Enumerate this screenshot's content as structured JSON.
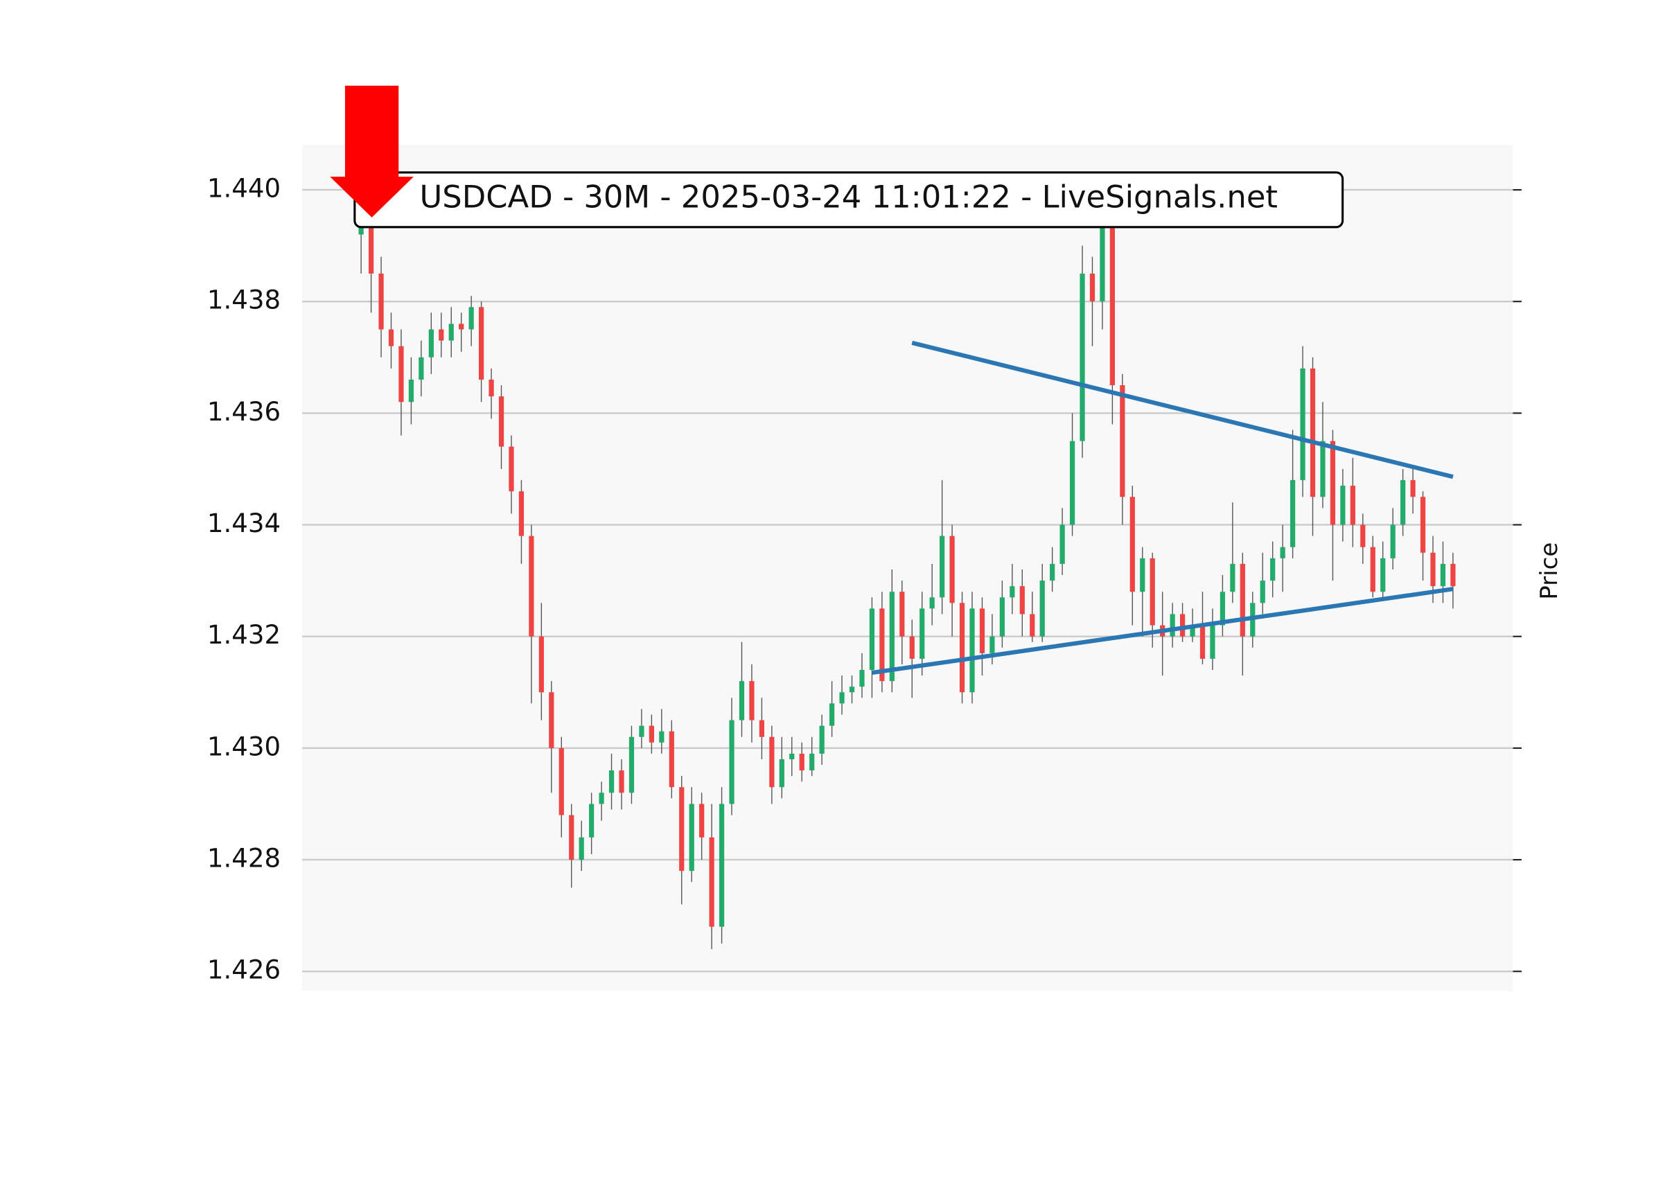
{
  "chart_data": {
    "type": "candlestick",
    "title": "USDCAD - 30M - 2025-03-24 11:01:22 - LiveSignals.net",
    "ylabel": "Price",
    "ylim": [
      1.42565,
      1.44081
    ],
    "yticks": [
      1.426,
      1.428,
      {
        "value": 1.43,
        "label": "1.430"
      },
      1.432,
      1.434,
      1.436,
      1.438,
      {
        "value": 1.44,
        "label": "1.440"
      }
    ],
    "grid": true,
    "up_color": "#22ab6a",
    "down_color": "#ef4444",
    "wick_color": "#555555",
    "open": [
      1.4392,
      1.4395,
      1.4385,
      1.4375,
      1.4372,
      1.4362,
      1.4366,
      1.437,
      1.4375,
      1.4373,
      1.4376,
      1.4375,
      1.4379,
      1.4366,
      1.4363,
      1.4354,
      1.4346,
      1.4338,
      1.432,
      1.431,
      1.43,
      1.4288,
      1.428,
      1.4284,
      1.429,
      1.4292,
      1.4296,
      1.4292,
      1.4302,
      1.4304,
      1.4301,
      1.4303,
      1.4293,
      1.4278,
      1.429,
      1.4284,
      1.4268,
      1.429,
      1.4305,
      1.4312,
      1.4305,
      1.4302,
      1.4293,
      1.4298,
      1.4299,
      1.4296,
      1.4299,
      1.4304,
      1.4308,
      1.431,
      1.4311,
      1.4314,
      1.4325,
      1.4312,
      1.4328,
      1.432,
      1.4316,
      1.4325,
      1.4327,
      1.4338,
      1.4326,
      1.431,
      1.4325,
      1.4317,
      1.432,
      1.4327,
      1.4329,
      1.4324,
      1.432,
      1.433,
      1.4333,
      1.434,
      1.4355,
      1.4385,
      1.438,
      1.4395,
      1.4365,
      1.4345,
      1.4328,
      1.4334,
      1.4322,
      1.432,
      1.4324,
      1.432,
      1.4322,
      1.4316,
      1.4322,
      1.4328,
      1.4333,
      1.432,
      1.4326,
      1.433,
      1.4334,
      1.4336,
      1.4348,
      1.4368,
      1.4345,
      1.4355,
      1.434,
      1.4347,
      1.434,
      1.4336,
      1.4328,
      1.4334,
      1.434,
      1.4348,
      1.4345,
      1.4335,
      1.4329,
      1.4333
    ],
    "high": [
      1.4405,
      1.4398,
      1.4388,
      1.4378,
      1.4375,
      1.437,
      1.4373,
      1.4378,
      1.4378,
      1.4379,
      1.4378,
      1.4381,
      1.438,
      1.4368,
      1.4365,
      1.4356,
      1.4348,
      1.434,
      1.4326,
      1.4312,
      1.4302,
      1.429,
      1.4287,
      1.4292,
      1.4294,
      1.4299,
      1.4298,
      1.4304,
      1.4307,
      1.4306,
      1.4307,
      1.4305,
      1.4295,
      1.4293,
      1.4292,
      1.429,
      1.4293,
      1.4309,
      1.4319,
      1.4315,
      1.4309,
      1.4304,
      1.4302,
      1.4302,
      1.4301,
      1.4302,
      1.4306,
      1.4312,
      1.4313,
      1.4313,
      1.4317,
      1.4327,
      1.4328,
      1.4332,
      1.433,
      1.4323,
      1.4328,
      1.4333,
      1.4348,
      1.434,
      1.4328,
      1.4328,
      1.4327,
      1.4324,
      1.433,
      1.4333,
      1.4332,
      1.4328,
      1.4333,
      1.4336,
      1.4343,
      1.436,
      1.439,
      1.4388,
      1.4398,
      1.4396,
      1.4367,
      1.4347,
      1.4336,
      1.4335,
      1.4328,
      1.4326,
      1.4326,
      1.4325,
      1.4328,
      1.4325,
      1.4331,
      1.4344,
      1.4335,
      1.4328,
      1.4335,
      1.4337,
      1.434,
      1.4357,
      1.4372,
      1.437,
      1.4362,
      1.4357,
      1.435,
      1.4352,
      1.4342,
      1.4338,
      1.4337,
      1.4343,
      1.435,
      1.435,
      1.4346,
      1.4338,
      1.4337,
      1.4335
    ],
    "low": [
      1.4385,
      1.4378,
      1.437,
      1.4368,
      1.4356,
      1.4358,
      1.4363,
      1.4367,
      1.437,
      1.437,
      1.4371,
      1.4372,
      1.4362,
      1.4359,
      1.435,
      1.4342,
      1.4333,
      1.4308,
      1.4305,
      1.4292,
      1.4284,
      1.4275,
      1.4278,
      1.4281,
      1.4287,
      1.4289,
      1.4289,
      1.429,
      1.43,
      1.4299,
      1.4299,
      1.4291,
      1.4272,
      1.4276,
      1.428,
      1.4264,
      1.4265,
      1.4288,
      1.4302,
      1.4301,
      1.4298,
      1.429,
      1.4291,
      1.4295,
      1.4294,
      1.4295,
      1.4297,
      1.4302,
      1.4306,
      1.4308,
      1.4309,
      1.4309,
      1.431,
      1.431,
      1.4315,
      1.4309,
      1.4313,
      1.4322,
      1.4324,
      1.432,
      1.4308,
      1.4308,
      1.4313,
      1.4315,
      1.4318,
      1.4324,
      1.432,
      1.4319,
      1.4319,
      1.4328,
      1.4331,
      1.4338,
      1.4352,
      1.4372,
      1.4375,
      1.4358,
      1.434,
      1.4322,
      1.432,
      1.4318,
      1.4313,
      1.4318,
      1.4319,
      1.4319,
      1.4315,
      1.4314,
      1.432,
      1.4326,
      1.4313,
      1.4318,
      1.4324,
      1.4327,
      1.4328,
      1.4334,
      1.4345,
      1.4338,
      1.4343,
      1.433,
      1.4337,
      1.4336,
      1.4333,
      1.4327,
      1.4327,
      1.4332,
      1.4338,
      1.4342,
      1.433,
      1.4326,
      1.4326,
      1.4325
    ],
    "close": [
      1.4395,
      1.4385,
      1.4375,
      1.4372,
      1.4362,
      1.4366,
      1.437,
      1.4375,
      1.4373,
      1.4376,
      1.4375,
      1.4379,
      1.4366,
      1.4363,
      1.4354,
      1.4346,
      1.4338,
      1.432,
      1.431,
      1.43,
      1.4288,
      1.428,
      1.4284,
      1.429,
      1.4292,
      1.4296,
      1.4292,
      1.4302,
      1.4304,
      1.4301,
      1.4303,
      1.4293,
      1.4278,
      1.429,
      1.4284,
      1.4268,
      1.429,
      1.4305,
      1.4312,
      1.4305,
      1.4302,
      1.4293,
      1.4298,
      1.4299,
      1.4296,
      1.4299,
      1.4304,
      1.4308,
      1.431,
      1.4311,
      1.4314,
      1.4325,
      1.4312,
      1.4328,
      1.432,
      1.4316,
      1.4325,
      1.4327,
      1.4338,
      1.4326,
      1.431,
      1.4325,
      1.4317,
      1.432,
      1.4327,
      1.4329,
      1.4324,
      1.432,
      1.433,
      1.4333,
      1.434,
      1.4355,
      1.4385,
      1.438,
      1.4395,
      1.4365,
      1.4345,
      1.4328,
      1.4334,
      1.4322,
      1.432,
      1.4324,
      1.432,
      1.4322,
      1.4316,
      1.4322,
      1.4328,
      1.4333,
      1.432,
      1.4326,
      1.433,
      1.4334,
      1.4336,
      1.4348,
      1.4368,
      1.4345,
      1.4355,
      1.434,
      1.4347,
      1.434,
      1.4336,
      1.4328,
      1.4334,
      1.434,
      1.4348,
      1.4345,
      1.4335,
      1.4329,
      1.4333,
      1.4329
    ],
    "trendlines": [
      {
        "color": "#2a77b4",
        "x": [
          55,
          109
        ],
        "y": [
          1.43726,
          1.43486
        ]
      },
      {
        "color": "#2a77b4",
        "x": [
          51,
          109
        ],
        "y": [
          1.43135,
          1.43285
        ]
      }
    ]
  }
}
